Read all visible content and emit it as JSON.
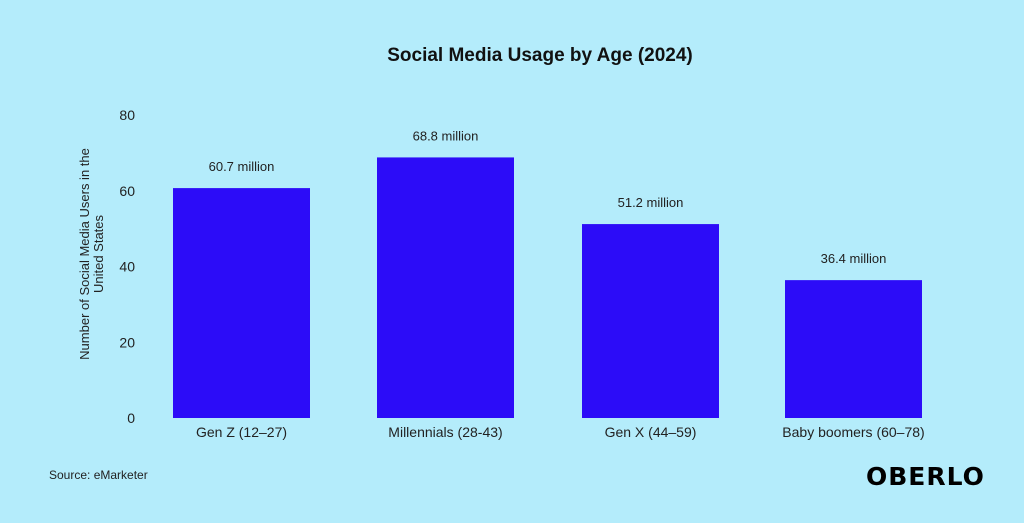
{
  "chart_data": {
    "type": "bar",
    "title": "Social Media Usage by Age (2024)",
    "categories": [
      "Gen Z (12–27)",
      "Millennials (28-43)",
      "Gen X (44–59)",
      "Baby boomers (60–78)"
    ],
    "values": [
      60.7,
      68.8,
      51.2,
      36.4
    ],
    "data_labels": [
      "60.7 million",
      "68.8 million",
      "51.2 million",
      "36.4 million"
    ],
    "xlabel": "",
    "ylabel_lines": [
      "Number of Social Media Users in the",
      "United States"
    ],
    "ylim": [
      0,
      80
    ],
    "yticks": [
      "0",
      "20",
      "40",
      "60",
      "80"
    ],
    "grid": false,
    "bar_color": "#2c0cf8"
  },
  "footer": {
    "source": "Source: eMarketer",
    "brand": "OBERLO"
  }
}
